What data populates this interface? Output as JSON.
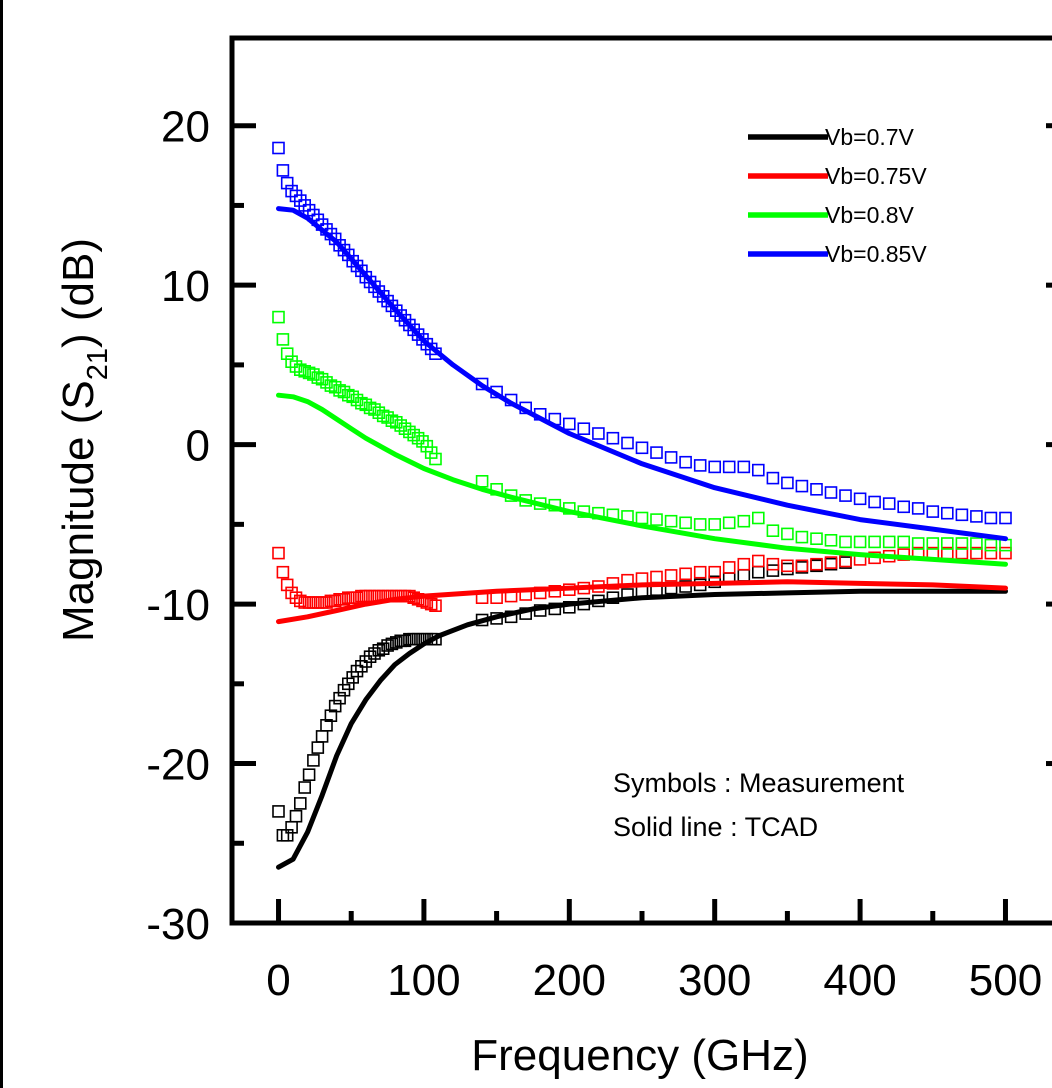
{
  "colors": {
    "Vb=0.7V": "#000000",
    "Vb=0.75V": "#ff0000",
    "Vb=0.8V": "#00ff00",
    "Vb=0.85V": "#0000ff"
  },
  "chart_data": {
    "type": "scatter",
    "xlabel": "Frequency (GHz)",
    "ylabel_prefix": "Magnitude (S",
    "ylabel_sub": "21",
    "ylabel_suffix": ") (dB)",
    "xlim": [
      -32,
      532
    ],
    "ylim": [
      -30,
      25.5
    ],
    "x_ticks": [
      0,
      100,
      200,
      300,
      400,
      500
    ],
    "x_minor_ticks": [
      50,
      150,
      250,
      350,
      450
    ],
    "y_ticks": [
      -30,
      -20,
      -10,
      0,
      10,
      20
    ],
    "y_minor_ticks": [
      -25,
      -15,
      -5,
      5,
      15
    ],
    "grid": false,
    "legend_position": "top-right",
    "annotations": [
      "Symbols : Measurement",
      "Solid line : TCAD"
    ],
    "series": [
      {
        "name": "Vb=0.7V",
        "tcad": {
          "x": [
            0,
            10,
            20,
            30,
            40,
            50,
            60,
            70,
            80,
            90,
            100,
            110,
            130,
            150,
            175,
            200,
            250,
            300,
            350,
            400,
            450,
            500
          ],
          "y": [
            -26.5,
            -26,
            -24.3,
            -22,
            -19.5,
            -17.5,
            -16,
            -14.8,
            -13.8,
            -13.1,
            -12.5,
            -12,
            -11.3,
            -10.8,
            -10.3,
            -10,
            -9.6,
            -9.4,
            -9.3,
            -9.2,
            -9.2,
            -9.2
          ]
        },
        "measurement": {
          "x": [
            0,
            3,
            6,
            9,
            12,
            15,
            18,
            21,
            24,
            27,
            30,
            33,
            36,
            39,
            42,
            45,
            48,
            51,
            54,
            57,
            60,
            63,
            66,
            69,
            72,
            75,
            78,
            81,
            84,
            87,
            90,
            93,
            96,
            99,
            102,
            105,
            108,
            140,
            150,
            160,
            170,
            180,
            190,
            200,
            210,
            220,
            230,
            240,
            250,
            260,
            270,
            280,
            290,
            300,
            310,
            320,
            330,
            340,
            350,
            360,
            370,
            380,
            390
          ],
          "y": [
            -23,
            -24.5,
            -24.5,
            -24,
            -23.3,
            -22.5,
            -21.5,
            -20.7,
            -19.8,
            -19,
            -18.3,
            -17.6,
            -17,
            -16.4,
            -15.9,
            -15.4,
            -15,
            -14.6,
            -14.2,
            -13.9,
            -13.6,
            -13.3,
            -13.1,
            -12.9,
            -12.8,
            -12.6,
            -12.5,
            -12.4,
            -12.3,
            -12.3,
            -12.2,
            -12.2,
            -12.2,
            -12.2,
            -12.2,
            -12.2,
            -12.2,
            -11,
            -10.9,
            -10.8,
            -10.6,
            -10.4,
            -10.3,
            -10.2,
            -10,
            -9.8,
            -9.6,
            -9.4,
            -9.2,
            -9.1,
            -9,
            -8.9,
            -8.8,
            -8.6,
            -8.4,
            -8.2,
            -8,
            -7.9,
            -7.8,
            -7.7,
            -7.6,
            -7.5,
            -7.4
          ]
        }
      },
      {
        "name": "Vb=0.75V",
        "tcad": {
          "x": [
            0,
            20,
            40,
            60,
            80,
            100,
            150,
            200,
            250,
            300,
            350,
            400,
            450,
            500
          ],
          "y": [
            -11.1,
            -10.8,
            -10.4,
            -10,
            -9.7,
            -9.5,
            -9.2,
            -9,
            -8.8,
            -8.7,
            -8.6,
            -8.7,
            -8.8,
            -9
          ]
        },
        "measurement": {
          "x": [
            0,
            3,
            6,
            9,
            12,
            15,
            18,
            21,
            24,
            27,
            30,
            33,
            36,
            39,
            42,
            45,
            48,
            51,
            54,
            57,
            60,
            63,
            66,
            69,
            72,
            75,
            78,
            81,
            84,
            87,
            90,
            93,
            96,
            99,
            102,
            105,
            108,
            140,
            150,
            160,
            170,
            180,
            190,
            200,
            210,
            220,
            230,
            240,
            250,
            260,
            270,
            280,
            290,
            300,
            310,
            320,
            330,
            340,
            350,
            360,
            370,
            380,
            390,
            400,
            410,
            420,
            430,
            440,
            450,
            460,
            470,
            480,
            490,
            500
          ],
          "y": [
            -6.8,
            -8,
            -8.8,
            -9.3,
            -9.6,
            -9.8,
            -9.9,
            -9.9,
            -9.9,
            -9.9,
            -9.9,
            -9.9,
            -9.8,
            -9.8,
            -9.7,
            -9.7,
            -9.6,
            -9.6,
            -9.6,
            -9.5,
            -9.5,
            -9.5,
            -9.5,
            -9.5,
            -9.5,
            -9.5,
            -9.5,
            -9.5,
            -9.5,
            -9.5,
            -9.5,
            -9.6,
            -9.7,
            -9.8,
            -9.9,
            -10,
            -10.1,
            -9.6,
            -9.6,
            -9.5,
            -9.4,
            -9.3,
            -9.2,
            -9.1,
            -9,
            -8.9,
            -8.7,
            -8.5,
            -8.4,
            -8.3,
            -8.2,
            -8.1,
            -8,
            -8,
            -7.7,
            -7.5,
            -7.3,
            -7.5,
            -7.6,
            -7.6,
            -7.5,
            -7.4,
            -7.3,
            -7.2,
            -7.1,
            -7,
            -6.9,
            -6.8,
            -6.8,
            -6.8,
            -6.8,
            -6.8,
            -6.8,
            -6.8
          ]
        }
      },
      {
        "name": "Vb=0.8V",
        "tcad": {
          "x": [
            0,
            10,
            20,
            30,
            40,
            50,
            60,
            80,
            100,
            120,
            140,
            160,
            200,
            250,
            300,
            350,
            400,
            450,
            500
          ],
          "y": [
            3.1,
            3,
            2.7,
            2.2,
            1.6,
            1,
            0.4,
            -0.6,
            -1.5,
            -2.2,
            -2.8,
            -3.3,
            -4.2,
            -5.1,
            -5.9,
            -6.5,
            -6.9,
            -7.2,
            -7.5
          ]
        },
        "measurement": {
          "x": [
            0,
            3,
            6,
            9,
            12,
            15,
            18,
            21,
            24,
            27,
            30,
            33,
            36,
            39,
            42,
            45,
            48,
            51,
            54,
            57,
            60,
            63,
            66,
            69,
            72,
            75,
            78,
            81,
            84,
            87,
            90,
            93,
            96,
            99,
            102,
            105,
            108,
            140,
            150,
            160,
            170,
            180,
            190,
            200,
            210,
            220,
            230,
            240,
            250,
            260,
            270,
            280,
            290,
            300,
            310,
            320,
            330,
            340,
            350,
            360,
            370,
            380,
            390,
            400,
            410,
            420,
            430,
            440,
            450,
            460,
            470,
            480,
            490,
            500
          ],
          "y": [
            8,
            6.6,
            5.7,
            5.2,
            4.9,
            4.7,
            4.6,
            4.5,
            4.4,
            4.2,
            4.1,
            3.9,
            3.7,
            3.6,
            3.4,
            3.3,
            3.1,
            3,
            2.8,
            2.6,
            2.5,
            2.3,
            2.2,
            2,
            1.8,
            1.7,
            1.5,
            1.4,
            1.2,
            1,
            0.8,
            0.6,
            0.4,
            0.2,
            -0.1,
            -0.5,
            -0.9,
            -2.3,
            -2.8,
            -3.2,
            -3.5,
            -3.7,
            -3.8,
            -4,
            -4.2,
            -4.3,
            -4.4,
            -4.5,
            -4.6,
            -4.7,
            -4.8,
            -4.9,
            -5,
            -5,
            -4.9,
            -4.8,
            -4.6,
            -5.4,
            -5.6,
            -5.8,
            -5.9,
            -6,
            -6.1,
            -6.1,
            -6.1,
            -6.1,
            -6.1,
            -6.2,
            -6.2,
            -6.2,
            -6.2,
            -6.2,
            -6.3,
            -6.3
          ]
        }
      },
      {
        "name": "Vb=0.85V",
        "tcad": {
          "x": [
            0,
            10,
            20,
            40,
            60,
            80,
            100,
            120,
            140,
            160,
            200,
            250,
            300,
            350,
            400,
            450,
            500
          ],
          "y": [
            14.8,
            14.7,
            14.2,
            12.7,
            10.6,
            8.5,
            6.5,
            5,
            3.7,
            2.6,
            0.7,
            -1.2,
            -2.7,
            -3.8,
            -4.7,
            -5.3,
            -5.9
          ]
        },
        "measurement": {
          "x": [
            0,
            3,
            6,
            9,
            12,
            15,
            18,
            21,
            24,
            27,
            30,
            33,
            36,
            39,
            42,
            45,
            48,
            51,
            54,
            57,
            60,
            63,
            66,
            69,
            72,
            75,
            78,
            81,
            84,
            87,
            90,
            93,
            96,
            99,
            102,
            105,
            108,
            140,
            150,
            160,
            170,
            180,
            190,
            200,
            210,
            220,
            230,
            240,
            250,
            260,
            270,
            280,
            290,
            300,
            310,
            320,
            330,
            340,
            350,
            360,
            370,
            380,
            390,
            400,
            410,
            420,
            430,
            440,
            450,
            460,
            470,
            480,
            490,
            500
          ],
          "y": [
            18.6,
            17.2,
            16.4,
            15.9,
            15.6,
            15.3,
            15,
            14.7,
            14.4,
            14.1,
            13.8,
            13.5,
            13.2,
            12.9,
            12.5,
            12.2,
            11.9,
            11.5,
            11.2,
            10.9,
            10.5,
            10.2,
            9.9,
            9.6,
            9.3,
            9,
            8.7,
            8.4,
            8.1,
            7.8,
            7.5,
            7.2,
            6.9,
            6.6,
            6.3,
            6,
            5.7,
            3.8,
            3.3,
            2.8,
            2.3,
            1.9,
            1.6,
            1.3,
            1,
            0.7,
            0.4,
            0.1,
            -0.2,
            -0.5,
            -0.8,
            -1.1,
            -1.3,
            -1.4,
            -1.4,
            -1.4,
            -1.6,
            -2.1,
            -2.4,
            -2.6,
            -2.8,
            -3,
            -3.2,
            -3.4,
            -3.6,
            -3.7,
            -3.9,
            -4,
            -4.2,
            -4.3,
            -4.4,
            -4.5,
            -4.6,
            -4.6
          ]
        }
      }
    ]
  }
}
